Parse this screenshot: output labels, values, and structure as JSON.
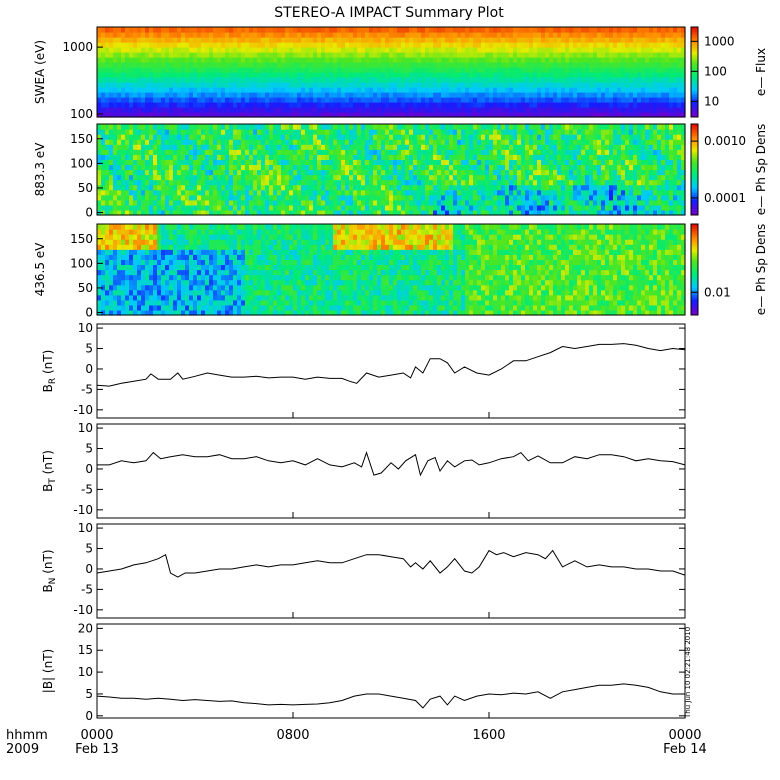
{
  "chart_data": {
    "type": "line",
    "title": "STEREO-A IMPACT Summary Plot",
    "x_axis": {
      "corner_label_1": "hhmm",
      "corner_label_2": "2009",
      "range_hours": [
        0,
        24
      ],
      "ticks": [
        {
          "hour": 0,
          "label": "0000",
          "date": "Feb 13"
        },
        {
          "hour": 8,
          "label": "0800",
          "date": ""
        },
        {
          "hour": 16,
          "label": "1600",
          "date": ""
        },
        {
          "hour": 24,
          "label": "0000",
          "date": "Feb 14"
        }
      ]
    },
    "spectrograms": [
      {
        "name": "swea",
        "ylabel": "SWEA (eV)",
        "log_y": true,
        "ylim": [
          90,
          2000
        ],
        "yticks": [
          "100",
          "1000"
        ],
        "colorbar": {
          "label": "e— Flux",
          "log": true,
          "range": [
            3,
            3000
          ],
          "ticks": [
            "10",
            "100",
            "1000"
          ]
        }
      },
      {
        "name": "pad883",
        "ylabel": "883.3 eV",
        "log_y": false,
        "ylim": [
          -5,
          180
        ],
        "yticks": [
          "0",
          "50",
          "100",
          "150"
        ],
        "colorbar": {
          "label": "e— Ph Sp Dens",
          "log": true,
          "range": [
            5e-05,
            0.002
          ],
          "ticks": [
            "0.0001",
            "0.0010"
          ]
        }
      },
      {
        "name": "pad436",
        "ylabel": "436.5 eV",
        "log_y": false,
        "ylim": [
          -5,
          180
        ],
        "yticks": [
          "0",
          "50",
          "100",
          "150"
        ],
        "colorbar": {
          "label": "e— Ph Sp Dens",
          "log": true,
          "range": [
            0.005,
            0.08
          ],
          "ticks": [
            "0.01"
          ]
        }
      }
    ],
    "series": [
      {
        "name": "br",
        "ylabel": {
          "main": "B",
          "sub": "R",
          "unit": " (nT)"
        },
        "ylim": [
          -12,
          11
        ],
        "yticks": [
          -10,
          -5,
          0,
          5,
          10
        ],
        "x": [
          0,
          0.5,
          1,
          1.5,
          2,
          2.2,
          2.5,
          3,
          3.3,
          3.5,
          4,
          4.5,
          5,
          5.5,
          6,
          6.5,
          7,
          7.5,
          8,
          8.5,
          9,
          9.5,
          10,
          10.3,
          10.6,
          11,
          11.5,
          12,
          12.5,
          12.8,
          13,
          13.3,
          13.6,
          14,
          14.3,
          14.6,
          15,
          15.5,
          16,
          16.5,
          17,
          17.5,
          18,
          18.5,
          19,
          19.5,
          20,
          20.5,
          21,
          21.5,
          22,
          22.5,
          23,
          23.5,
          24
        ],
        "y": [
          -4,
          -4.2,
          -3.5,
          -3,
          -2.5,
          -1.2,
          -2.5,
          -2.5,
          -1,
          -2.5,
          -1.8,
          -1,
          -1.5,
          -2,
          -2,
          -1.8,
          -2.2,
          -2,
          -2,
          -2.5,
          -2,
          -2.3,
          -2.3,
          -3,
          -3.5,
          -1,
          -2,
          -1.5,
          -1,
          -2.2,
          0.5,
          -1,
          2.5,
          2.5,
          1.5,
          -1,
          0.5,
          -1,
          -1.5,
          0,
          2,
          2,
          3,
          4,
          5.5,
          5,
          5.5,
          6,
          6,
          6.2,
          5.8,
          5,
          4.5,
          5,
          4.7
        ]
      },
      {
        "name": "bt",
        "ylabel": {
          "main": "B",
          "sub": "T",
          "unit": " (nT)"
        },
        "ylim": [
          -12,
          11
        ],
        "yticks": [
          -10,
          -5,
          0,
          5,
          10
        ],
        "x": [
          0,
          0.5,
          1,
          1.5,
          2,
          2.3,
          2.6,
          3,
          3.5,
          4,
          4.5,
          5,
          5.5,
          6,
          6.5,
          7,
          7.5,
          8,
          8.5,
          9,
          9.5,
          10,
          10.5,
          10.8,
          11,
          11.3,
          11.6,
          12,
          12.3,
          12.6,
          13,
          13.2,
          13.5,
          13.8,
          14,
          14.3,
          14.6,
          15,
          15.3,
          15.6,
          16,
          16.5,
          17,
          17.3,
          17.6,
          18,
          18.5,
          19,
          19.5,
          20,
          20.5,
          21,
          21.5,
          22,
          22.5,
          23,
          23.5,
          24
        ],
        "y": [
          1,
          1,
          2,
          1.5,
          2,
          4,
          2.5,
          3,
          3.5,
          3,
          3,
          3.5,
          2.5,
          2.5,
          3,
          2,
          1.5,
          2,
          1,
          2.5,
          1,
          0.5,
          1.5,
          0.5,
          4,
          -1.5,
          -1,
          1.5,
          0,
          2,
          3.5,
          -1.5,
          2,
          2.8,
          -0.5,
          2,
          0.5,
          2,
          2.2,
          1,
          1.5,
          2.5,
          3,
          4,
          2,
          3.2,
          1.5,
          1.5,
          3,
          2.5,
          3.5,
          3.5,
          3,
          2,
          2.5,
          2,
          1.8,
          1
        ]
      },
      {
        "name": "bn",
        "ylabel": {
          "main": "B",
          "sub": "N",
          "unit": " (nT)"
        },
        "ylim": [
          -12,
          11
        ],
        "yticks": [
          -10,
          -5,
          0,
          5,
          10
        ],
        "x": [
          0,
          0.5,
          1,
          1.5,
          2,
          2.5,
          2.8,
          3,
          3.3,
          3.6,
          4,
          4.5,
          5,
          5.5,
          6,
          6.5,
          7,
          7.5,
          8,
          8.5,
          9,
          9.5,
          10,
          10.5,
          11,
          11.5,
          12,
          12.5,
          12.8,
          13,
          13.3,
          13.6,
          14,
          14.3,
          14.6,
          15,
          15.3,
          15.6,
          16,
          16.3,
          16.6,
          17,
          17.5,
          18,
          18.3,
          18.6,
          19,
          19.5,
          20,
          20.5,
          21,
          21.5,
          22,
          22.5,
          23,
          23.5,
          24
        ],
        "y": [
          -1,
          -0.5,
          0,
          1,
          1.5,
          2.5,
          3.5,
          -1,
          -2,
          -1,
          -1,
          -0.5,
          0,
          0,
          0.5,
          1,
          0.5,
          1,
          1,
          1.5,
          2,
          1.5,
          1.5,
          2.5,
          3.5,
          3.5,
          3,
          2.5,
          0.5,
          1.5,
          0,
          2,
          -1,
          0.5,
          2.5,
          -0.5,
          -1,
          0.5,
          4.5,
          3.5,
          4,
          3,
          4,
          3.5,
          2.5,
          4.5,
          0.5,
          2,
          0.5,
          1,
          0.5,
          0.5,
          0,
          0,
          -0.5,
          -0.5,
          -1.5
        ]
      },
      {
        "name": "bmag",
        "ylabel": {
          "main": "|B|",
          "sub": "",
          "unit": " (nT)"
        },
        "ylim": [
          -0.5,
          21
        ],
        "yticks": [
          0,
          5,
          10,
          15,
          20
        ],
        "x": [
          0,
          0.5,
          1,
          1.5,
          2,
          2.5,
          3,
          3.5,
          4,
          4.5,
          5,
          5.5,
          6,
          6.5,
          7,
          7.5,
          8,
          8.5,
          9,
          9.5,
          10,
          10.5,
          11,
          11.5,
          12,
          12.5,
          13,
          13.3,
          13.6,
          14,
          14.3,
          14.6,
          15,
          15.5,
          16,
          16.5,
          17,
          17.5,
          18,
          18.5,
          19,
          19.5,
          20,
          20.5,
          21,
          21.5,
          22,
          22.5,
          23,
          23.5,
          24
        ],
        "y": [
          4.5,
          4.3,
          4,
          4,
          3.8,
          4,
          3.8,
          3.5,
          3.7,
          3.5,
          3.3,
          3.4,
          3,
          2.8,
          2.5,
          2.6,
          2.5,
          2.6,
          2.7,
          3,
          3.5,
          4.5,
          5,
          5,
          4.5,
          4,
          3.5,
          1.8,
          3.8,
          4.5,
          2.5,
          4.5,
          3.5,
          4.5,
          5,
          4.8,
          5.2,
          5,
          5.5,
          4,
          5.5,
          6,
          6.5,
          7,
          7,
          7.3,
          7,
          6.5,
          5.5,
          5,
          5
        ]
      }
    ],
    "annotation": "Thu Jun 10 02:21:48 2010"
  }
}
